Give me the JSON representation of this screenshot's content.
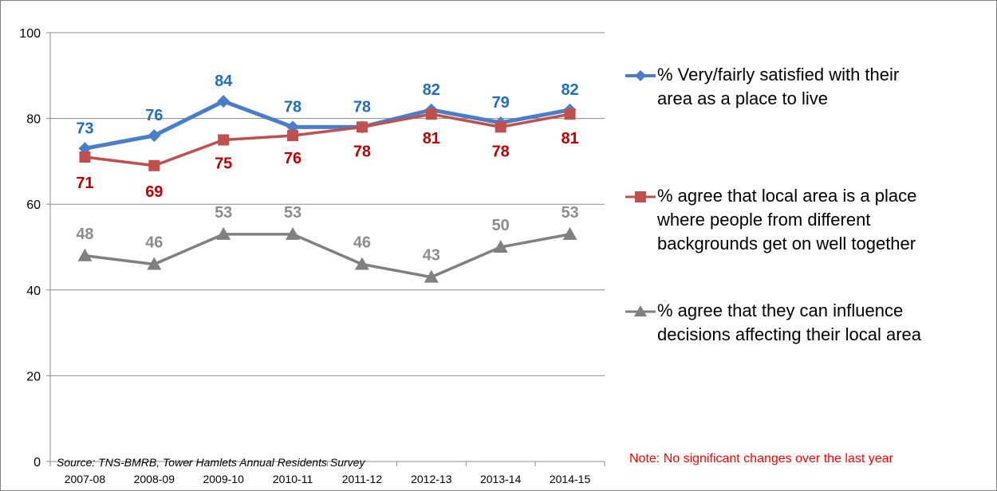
{
  "chart_data": {
    "type": "line",
    "categories": [
      "2007-08",
      "2008-09",
      "2009-10",
      "2010-11",
      "2011-12",
      "2012-13",
      "2013-14",
      "2014-15"
    ],
    "ylim": [
      0,
      100
    ],
    "yticks": [
      0,
      20,
      40,
      60,
      80,
      100
    ],
    "grid": true,
    "legend_position": "right",
    "series": [
      {
        "name": "% Very/fairly satisfied with their area as a place to live",
        "values": [
          73,
          76,
          84,
          78,
          78,
          82,
          79,
          82
        ],
        "labels": [
          "73",
          "76",
          "84",
          "78",
          "78",
          "82",
          "79",
          "82"
        ],
        "marker": "diamond",
        "color": "#4a7ec9",
        "label_color": "#1f6fbf"
      },
      {
        "name": "% agree that local area is a place where people from different backgrounds get on well together",
        "values": [
          71,
          69,
          75,
          76,
          78,
          81,
          78,
          81
        ],
        "labels": [
          "71",
          "69",
          "75",
          "76",
          "78",
          "81",
          "78",
          "81"
        ],
        "marker": "square",
        "color": "#c0504d",
        "label_color": "#c00000"
      },
      {
        "name": "% agree that they can influence decisions affecting their local area",
        "values": [
          48,
          46,
          53,
          53,
          46,
          43,
          50,
          53
        ],
        "labels": [
          "48",
          "46",
          "53",
          "53",
          "46",
          "43",
          "50",
          "53"
        ],
        "marker": "triangle",
        "color": "#808080",
        "label_color": "#8c8c8c"
      }
    ]
  },
  "source": "Source: TNS-BMRB, Tower Hamlets Annual Residents Survey",
  "note": "Note: No significant changes over the last year",
  "legend": [
    {
      "text": "% Very/fairly satisfied with their\narea as a place to live"
    },
    {
      "text": "% agree that local area is a place\nwhere people from different\nbackgrounds get on well together"
    },
    {
      "text": "% agree that they can influence\ndecisions affecting their local area"
    }
  ]
}
